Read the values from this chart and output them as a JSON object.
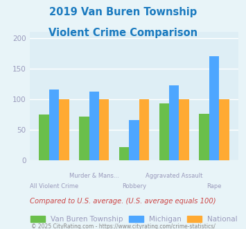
{
  "title_line1": "2019 Van Buren Township",
  "title_line2": "Violent Crime Comparison",
  "categories": [
    "All Violent Crime",
    "Murder & Mans...",
    "Robbery",
    "Aggravated Assault",
    "Rape"
  ],
  "series": {
    "Van Buren Township": [
      75,
      72,
      22,
      93,
      76
    ],
    "Michigan": [
      116,
      112,
      66,
      123,
      170
    ],
    "National": [
      100,
      100,
      100,
      100,
      100
    ]
  },
  "colors": {
    "Van Buren Township": "#6abf4b",
    "Michigan": "#4da6ff",
    "National": "#ffaa33"
  },
  "ylim": [
    0,
    210
  ],
  "yticks": [
    0,
    50,
    100,
    150,
    200
  ],
  "bar_width": 0.25,
  "background_color": "#e8f4f8",
  "plot_bg_color": "#deeef5",
  "title_color": "#1a7abf",
  "note_text": "Compared to U.S. average. (U.S. average equals 100)",
  "note_color": "#cc4444",
  "footer_text": "© 2025 CityRating.com - https://www.cityrating.com/crime-statistics/",
  "footer_color": "#888888",
  "grid_color": "#ffffff",
  "tick_label_color": "#9999bb"
}
